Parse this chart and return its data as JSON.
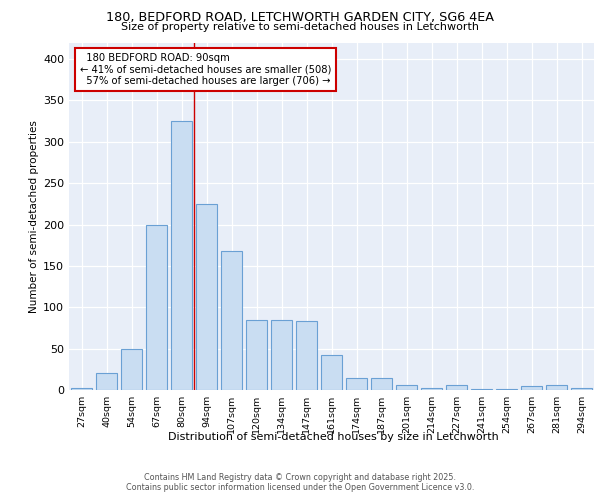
{
  "title1": "180, BEDFORD ROAD, LETCHWORTH GARDEN CITY, SG6 4EA",
  "title2": "Size of property relative to semi-detached houses in Letchworth",
  "xlabel": "Distribution of semi-detached houses by size in Letchworth",
  "ylabel": "Number of semi-detached properties",
  "categories": [
    "27sqm",
    "40sqm",
    "54sqm",
    "67sqm",
    "80sqm",
    "94sqm",
    "107sqm",
    "120sqm",
    "134sqm",
    "147sqm",
    "161sqm",
    "174sqm",
    "187sqm",
    "201sqm",
    "214sqm",
    "227sqm",
    "241sqm",
    "254sqm",
    "267sqm",
    "281sqm",
    "294sqm"
  ],
  "values": [
    3,
    20,
    50,
    200,
    325,
    225,
    168,
    85,
    85,
    83,
    42,
    15,
    15,
    6,
    3,
    6,
    1,
    1,
    5,
    6,
    2
  ],
  "bar_color": "#c9ddf2",
  "bar_edge_color": "#6aa0d4",
  "property_size": "90sqm",
  "property_name": "180 BEDFORD ROAD",
  "pct_smaller": 41,
  "count_smaller": 508,
  "pct_larger": 57,
  "count_larger": 706,
  "annotation_box_color": "#ffffff",
  "annotation_box_edge": "#cc0000",
  "vline_color": "#cc0000",
  "ylim": [
    0,
    420
  ],
  "yticks": [
    0,
    50,
    100,
    150,
    200,
    250,
    300,
    350,
    400
  ],
  "bg_color": "#e8eef8",
  "footer1": "Contains HM Land Registry data © Crown copyright and database right 2025.",
  "footer2": "Contains public sector information licensed under the Open Government Licence v3.0."
}
